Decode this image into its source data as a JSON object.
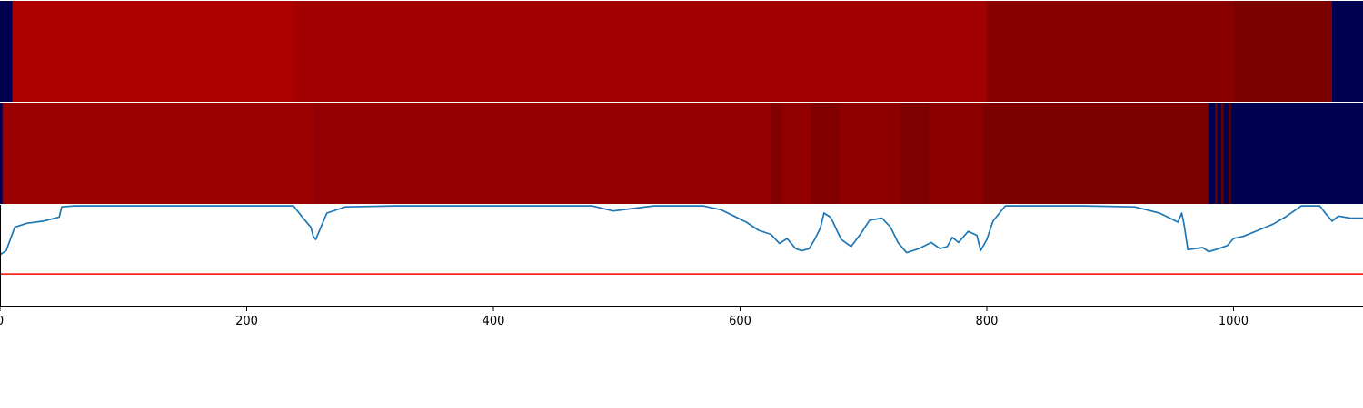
{
  "chart_data": [
    {
      "type": "heatmap",
      "panel": "top",
      "x_range": [
        0,
        1105
      ],
      "color_scale": "seismic",
      "background_color": "#000050",
      "segments": [
        {
          "x0": 0,
          "x1": 10,
          "color": "#000050"
        },
        {
          "x0": 10,
          "x1": 240,
          "color": "#aa0000"
        },
        {
          "x0": 240,
          "x1": 800,
          "color": "#a10000"
        },
        {
          "x0": 800,
          "x1": 1000,
          "color": "#8a0000"
        },
        {
          "x0": 1000,
          "x1": 1080,
          "color": "#7d0000"
        },
        {
          "x0": 1080,
          "x1": 1105,
          "color": "#000050"
        }
      ]
    },
    {
      "type": "heatmap",
      "panel": "middle",
      "x_range": [
        0,
        1105
      ],
      "color_scale": "seismic",
      "background_color": "#000050",
      "segments": [
        {
          "x0": 0,
          "x1": 2,
          "color": "#000050"
        },
        {
          "x0": 2,
          "x1": 257,
          "color": "#9a0000"
        },
        {
          "x0": 257,
          "x1": 625,
          "color": "#950000"
        },
        {
          "x0": 625,
          "x1": 633,
          "color": "#820000"
        },
        {
          "x0": 633,
          "x1": 658,
          "color": "#900000"
        },
        {
          "x0": 658,
          "x1": 680,
          "color": "#800000"
        },
        {
          "x0": 680,
          "x1": 730,
          "color": "#8e0000"
        },
        {
          "x0": 730,
          "x1": 753,
          "color": "#7f0000"
        },
        {
          "x0": 753,
          "x1": 797,
          "color": "#8c0000"
        },
        {
          "x0": 797,
          "x1": 980,
          "color": "#7d0000"
        },
        {
          "x0": 980,
          "x1": 985,
          "color": "#000050"
        },
        {
          "x0": 985,
          "x1": 987,
          "color": "#600000"
        },
        {
          "x0": 987,
          "x1": 990,
          "color": "#000050"
        },
        {
          "x0": 990,
          "x1": 992,
          "color": "#600000"
        },
        {
          "x0": 992,
          "x1": 996,
          "color": "#000050"
        },
        {
          "x0": 996,
          "x1": 998,
          "color": "#600000"
        },
        {
          "x0": 998,
          "x1": 1105,
          "color": "#000050"
        }
      ]
    },
    {
      "type": "line",
      "panel": "bottom",
      "xlim": [
        0,
        1105
      ],
      "xticks": [
        0,
        200,
        400,
        600,
        800,
        1000
      ],
      "xtick_labels": [
        "0",
        "200",
        "400",
        "600",
        "800",
        "1000"
      ],
      "ylim": [
        0,
        1
      ],
      "line_color": "#1f77b4",
      "threshold": {
        "y": 0.32,
        "color": "#ff0000"
      },
      "series": [
        {
          "x": [
            0,
            5,
            12,
            22,
            35,
            48,
            50,
            60,
            150,
            238,
            245,
            252,
            254,
            256,
            265,
            280,
            320,
            400,
            480,
            497,
            510,
            530,
            550,
            570,
            585,
            595,
            605,
            615,
            625,
            632,
            638,
            645,
            650,
            656,
            660,
            665,
            668,
            673,
            675,
            678,
            682,
            690,
            698,
            705,
            715,
            722,
            728,
            735,
            745,
            755,
            762,
            768,
            772,
            777,
            785,
            792,
            795,
            800,
            805,
            815,
            840,
            880,
            920,
            940,
            955,
            958,
            960,
            963,
            975,
            980,
            988,
            995,
            1000,
            1008,
            1020,
            1032,
            1042,
            1055,
            1060,
            1070,
            1075,
            1080,
            1085,
            1095,
            1105
          ],
          "y": [
            0.51,
            0.55,
            0.78,
            0.82,
            0.84,
            0.88,
            0.98,
            0.99,
            0.99,
            0.99,
            0.88,
            0.78,
            0.69,
            0.66,
            0.92,
            0.98,
            0.99,
            0.99,
            0.99,
            0.94,
            0.96,
            0.99,
            0.99,
            0.99,
            0.95,
            0.89,
            0.83,
            0.75,
            0.71,
            0.62,
            0.67,
            0.57,
            0.55,
            0.57,
            0.65,
            0.77,
            0.92,
            0.88,
            0.84,
            0.76,
            0.66,
            0.59,
            0.72,
            0.85,
            0.87,
            0.78,
            0.63,
            0.53,
            0.57,
            0.63,
            0.57,
            0.59,
            0.68,
            0.63,
            0.74,
            0.7,
            0.55,
            0.66,
            0.84,
            0.99,
            0.99,
            0.99,
            0.98,
            0.92,
            0.83,
            0.92,
            0.8,
            0.56,
            0.58,
            0.54,
            0.57,
            0.6,
            0.67,
            0.69,
            0.75,
            0.81,
            0.88,
            0.99,
            0.99,
            0.99,
            0.91,
            0.84,
            0.89,
            0.87,
            0.87
          ]
        }
      ]
    }
  ]
}
